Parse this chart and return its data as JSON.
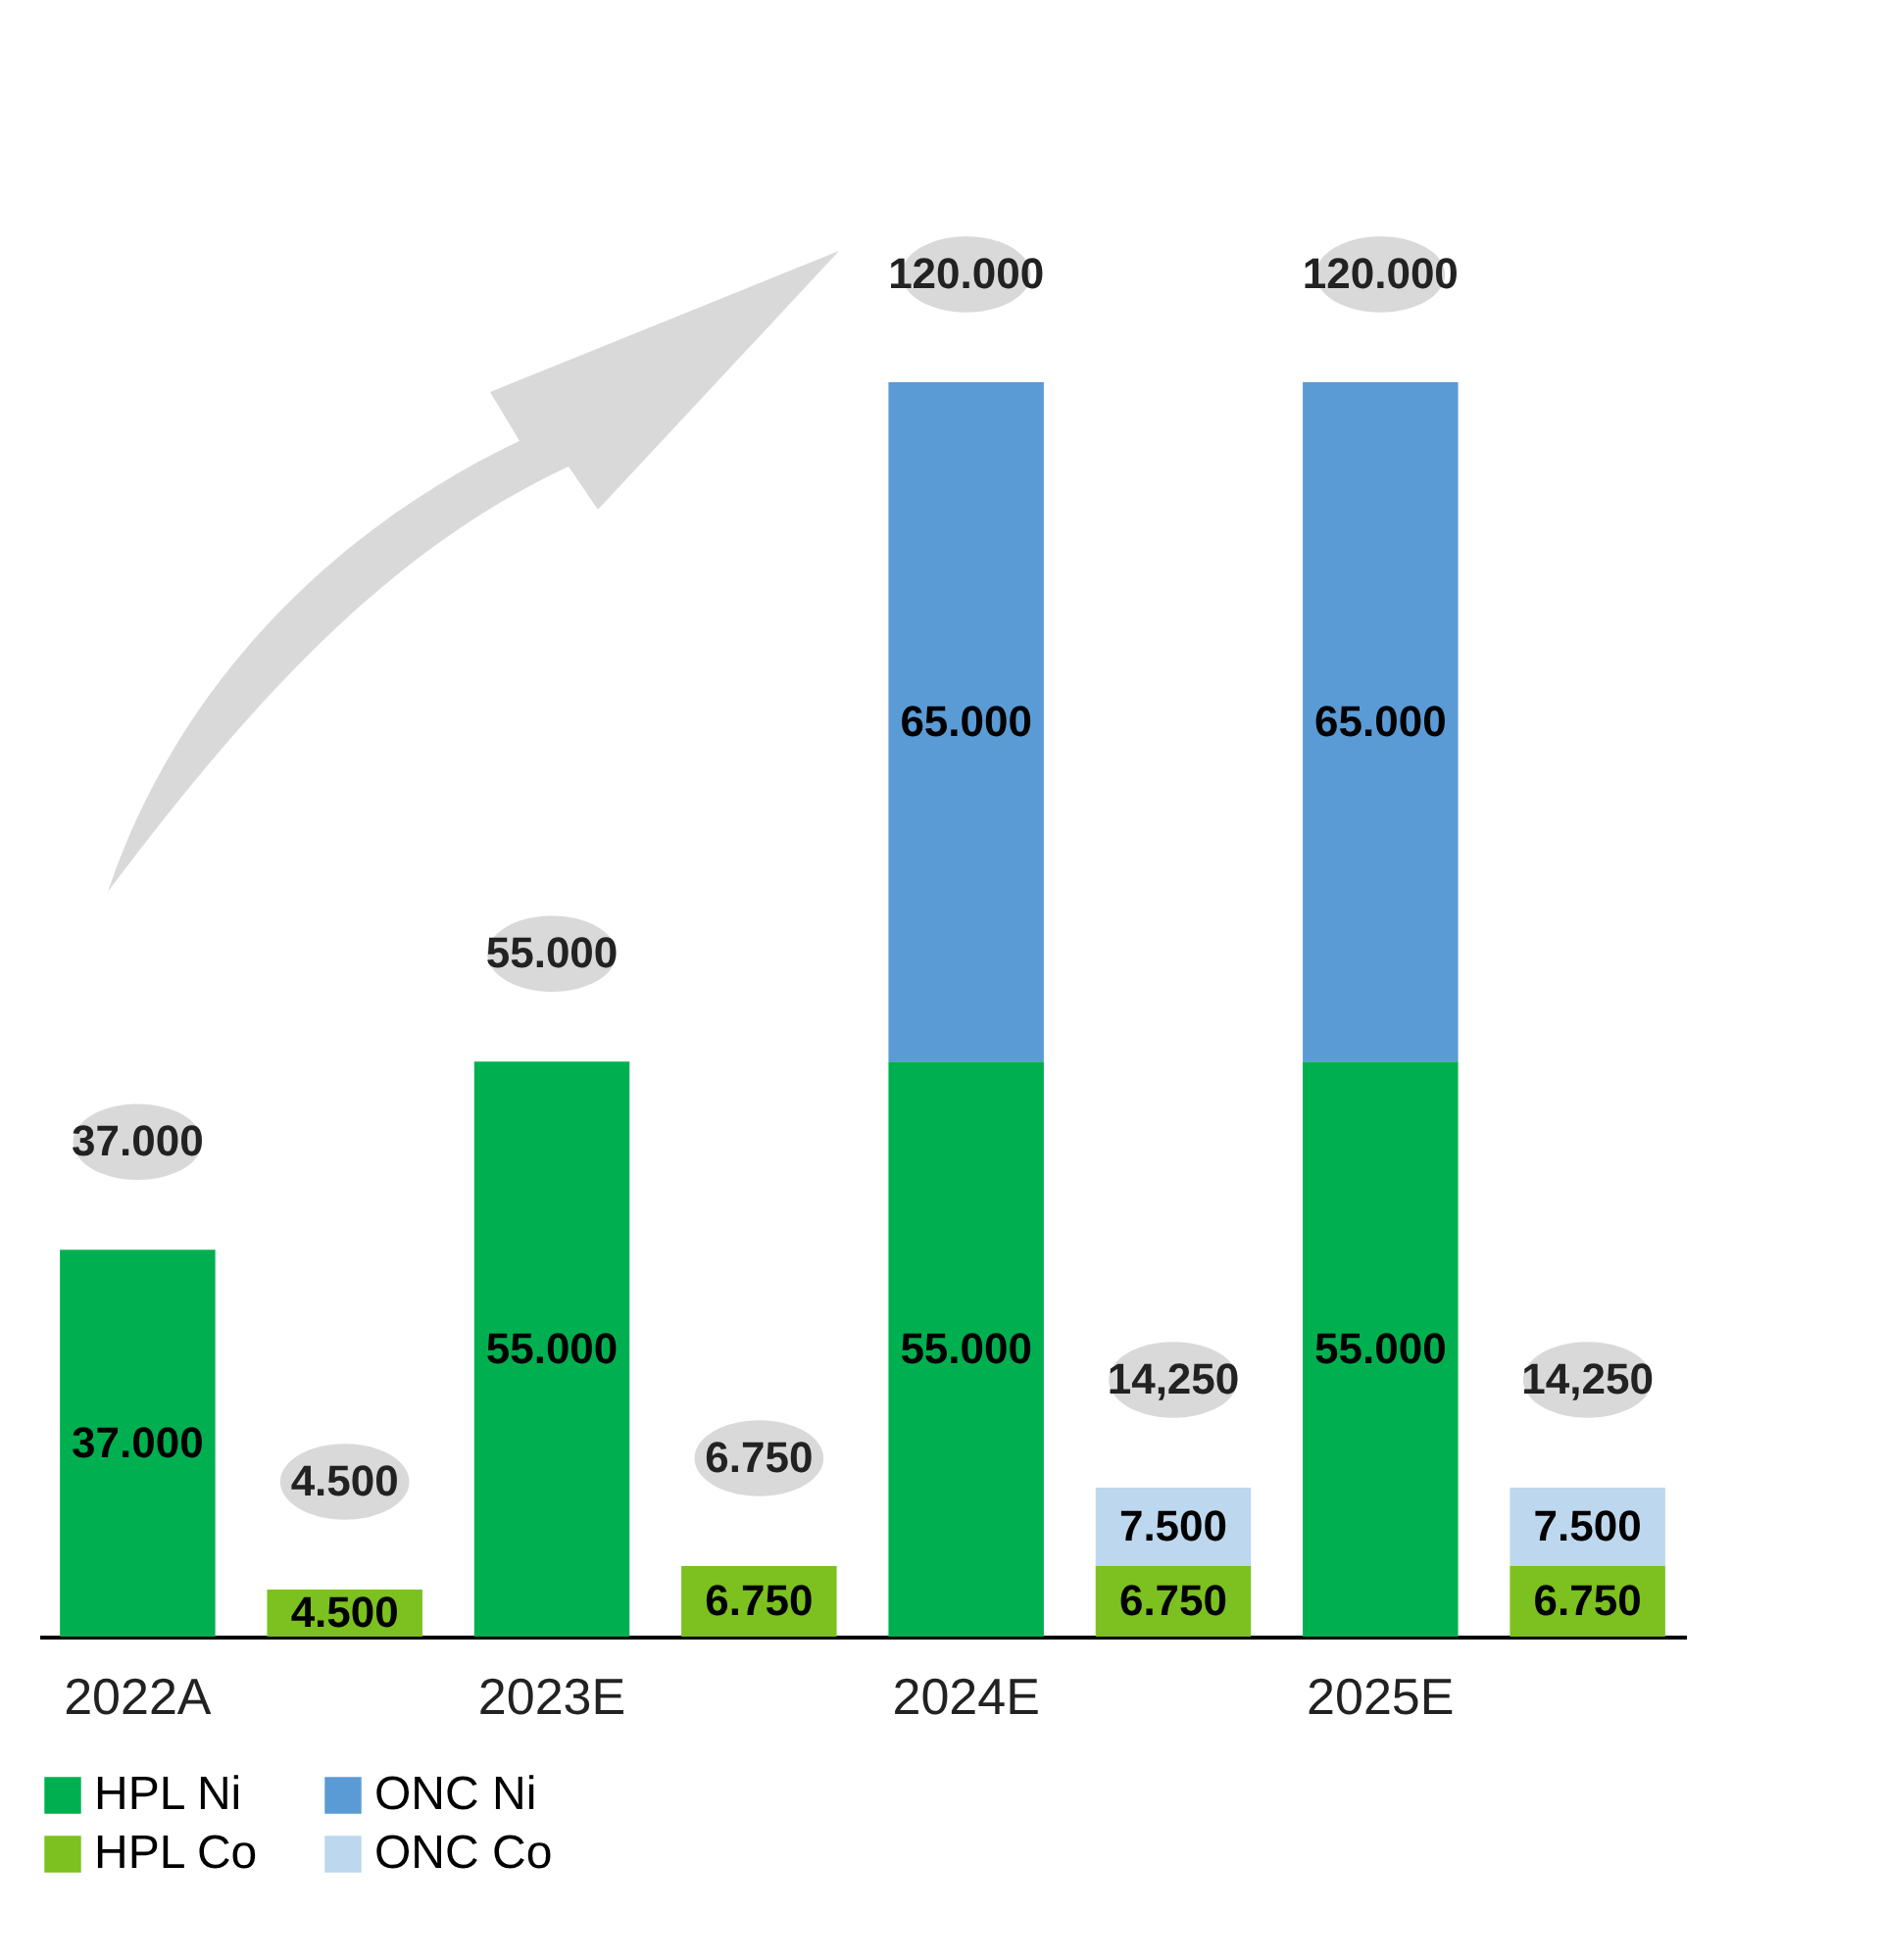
{
  "chart_data": {
    "type": "bar",
    "stacked": true,
    "tick_labels": "x",
    "grid": false,
    "legend": "bottom",
    "categories": [
      "2022A",
      null,
      "2023E",
      null,
      "2024E",
      null,
      "2025E",
      null
    ],
    "series": [
      {
        "name": "HPL Ni",
        "color": "#00b050",
        "values": [
          37,
          null,
          55,
          null,
          55,
          null,
          55,
          null
        ],
        "value_labels": [
          "37.000",
          null,
          "55.000",
          null,
          "55.000",
          null,
          "55.000",
          null
        ]
      },
      {
        "name": "ONC Ni",
        "color": "#5b9bd5",
        "values": [
          null,
          null,
          null,
          null,
          65,
          null,
          65,
          null
        ],
        "value_labels": [
          null,
          null,
          null,
          null,
          "65.000",
          null,
          "65.000",
          null
        ]
      },
      {
        "name": "HPL Co",
        "color": "#7cc11f",
        "values": [
          null,
          4.5,
          null,
          6.75,
          null,
          6.75,
          null,
          6.75
        ],
        "value_labels": [
          null,
          "4.500",
          null,
          "6.750",
          null,
          "6.750",
          null,
          "6.750"
        ]
      },
      {
        "name": "ONC Co",
        "color": "#bdd7ee",
        "values": [
          null,
          null,
          null,
          null,
          null,
          7.5,
          null,
          7.5
        ],
        "value_labels": [
          null,
          null,
          null,
          null,
          null,
          "7.500",
          null,
          "7.500"
        ]
      }
    ],
    "totals": [
      "37.000",
      "4.500",
      "55.000",
      "6.750",
      "120.000",
      "14,250",
      "120.000",
      "14,250"
    ]
  }
}
